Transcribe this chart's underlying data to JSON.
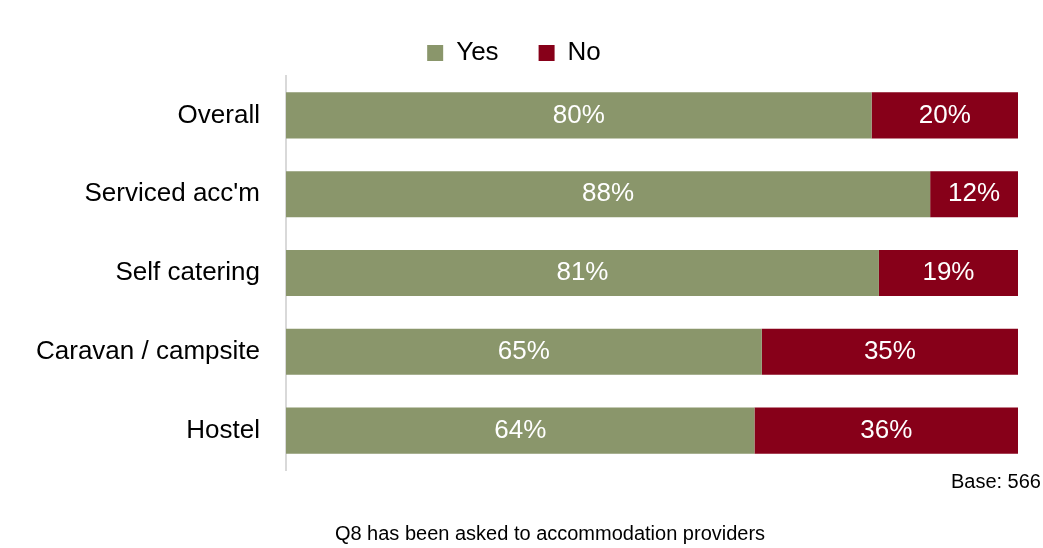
{
  "chart_data": {
    "type": "bar",
    "orientation": "horizontal",
    "stacked": true,
    "categories": [
      "Overall",
      "Serviced acc'm",
      "Self catering",
      "Caravan / campsite",
      "Hostel"
    ],
    "series": [
      {
        "name": "Yes",
        "color": "#8a966b",
        "values": [
          80,
          88,
          81,
          65,
          64
        ],
        "value_labels": [
          "80%",
          "88%",
          "81%",
          "65%",
          "64%"
        ]
      },
      {
        "name": "No",
        "color": "#870019",
        "values": [
          20,
          12,
          19,
          35,
          36
        ],
        "value_labels": [
          "20%",
          "12%",
          "19%",
          "35%",
          "36%"
        ]
      }
    ],
    "legend": "top",
    "grid": false,
    "tick_labels": "y",
    "annotations": [
      "Base: 566",
      "Q8 has been asked to accommodation providers"
    ]
  }
}
